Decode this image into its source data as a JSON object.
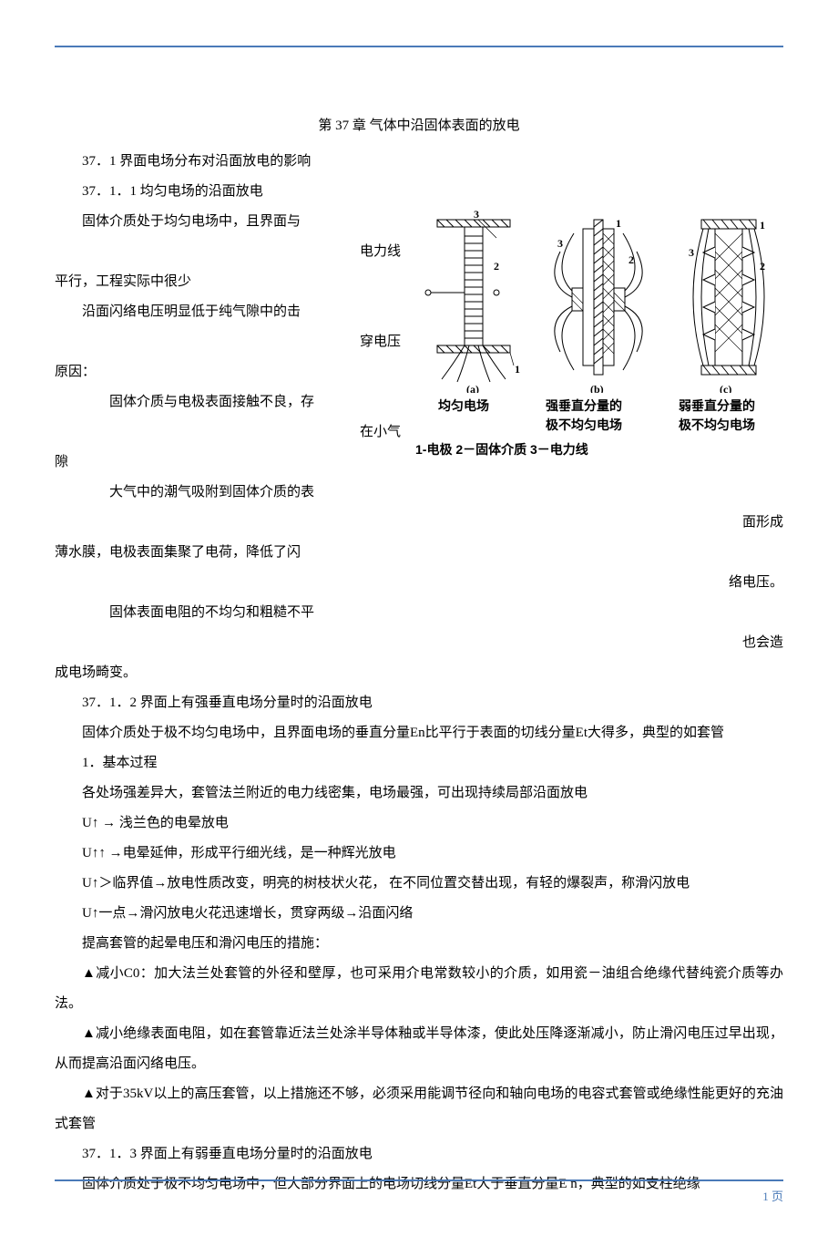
{
  "chapter_title": "第 37 章  气体中沿固体表面的放电",
  "s37_1": "37．1  界面电场分布对沿面放电的影响",
  "s37_1_1": "37．1．1  均匀电场的沿面放电",
  "p1a": "固体介质处于均匀电场中，且界面与",
  "p1b": "电力线",
  "p1c": "平行，工程实际中很少",
  "p2a": "沿面闪络电压明显低于纯气隙中的击",
  "p2b": "穿电压",
  "p2c": "原因：",
  "p3a": "固体介质与电极表面接触不良，存",
  "p3b": "在小气",
  "p3c": "隙",
  "p4a": "大气中的潮气吸附到固体介质的表",
  "p4b": "面形成",
  "p4c": "薄水膜，电极表面集聚了电荷，降低了闪",
  "p4d": "络电压。",
  "p5a": "固体表面电阻的不均匀和粗糙不平",
  "p5b": "也会造",
  "p5c": "成电场畸变。",
  "s37_1_2": "37．1．2  界面上有强垂直电场分量时的沿面放电",
  "p6": "固体介质处于极不均匀电场中，且界面电场的垂直分量En比平行于表面的切线分量Et大得多，典型的如套管",
  "p7": "1．基本过程",
  "p8": "各处场强差异大，套管法兰附近的电力线密集，电场最强，可出现持续局部沿面放电",
  "p9": "U↑ → 浅兰色的电晕放电",
  "p10": "U↑↑ →电晕延伸，形成平行细光线，是一种辉光放电",
  "p11": "U↑＞临界值→放电性质改变，明亮的树枝状火花， 在不同位置交替出现，有轻的爆裂声，称滑闪放电",
  "p12": "U↑一点→滑闪放电火花迅速增长，贯穿两级→沿面闪络",
  "p13": "提高套管的起晕电压和滑闪电压的措施：",
  "p14": "▲减小C0：加大法兰处套管的外径和壁厚，也可采用介电常数较小的介质，如用瓷－油组合绝缘代替纯瓷介质等办法。",
  "p15": "▲减小绝缘表面电阻，如在套管靠近法兰处涂半导体釉或半导体漆，使此处压降逐渐减小，防止滑闪电压过早出现，从而提高沿面闪络电压。",
  "p16": "▲对于35kV以上的高压套管，以上措施还不够，必须采用能调节径向和轴向电场的电容式套管或绝缘性能更好的充油式套管",
  "s37_1_3": "37．1．3  界面上有弱垂直电场分量时的沿面放电",
  "p17": "固体介质处于极不均匀电场中，但大部分界面上的电场切线分量Et大于垂直分量E n，典型的如支柱绝缘",
  "fig": {
    "col_a": "均匀电场",
    "col_b": "强垂直分量的极不均匀电场",
    "col_c": "弱垂直分量的极不均匀电场",
    "caption": "1-电极   2－固体介质   3－电力线",
    "label_a": "(a)",
    "label_b": "(b)",
    "label_c": "(c)",
    "n1": "1",
    "n2": "2",
    "n3": "3"
  },
  "page_number": "1 页",
  "colors": {
    "rule": "#4a7ab8",
    "text": "#000000",
    "hatch": "#000000"
  }
}
